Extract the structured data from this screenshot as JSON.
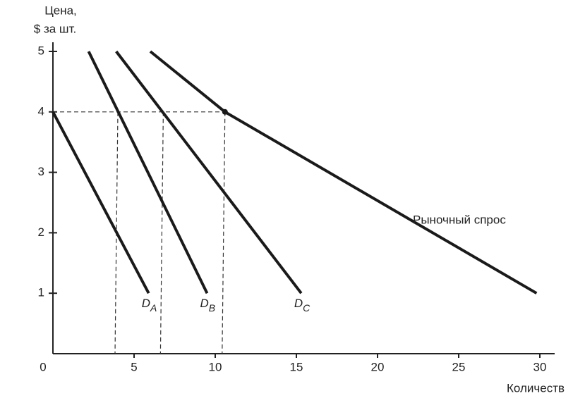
{
  "chart_data": {
    "type": "line",
    "ylabel": [
      "Цена,",
      "$ за шт."
    ],
    "xlabel": "Количеств",
    "xlim": [
      0,
      31
    ],
    "ylim": [
      0,
      5.3
    ],
    "xticks": [
      0,
      5,
      10,
      15,
      20,
      25,
      30
    ],
    "yticks": [
      1,
      2,
      3,
      4,
      5
    ],
    "series": [
      {
        "name": "D",
        "subscript": "A",
        "color": "#1a1a1a",
        "x": [
          0,
          5.9
        ],
        "values": [
          4,
          1
        ]
      },
      {
        "name": "D",
        "subscript": "B",
        "color": "#1a1a1a",
        "x": [
          2.2,
          9.5
        ],
        "values": [
          5,
          1
        ]
      },
      {
        "name": "D",
        "subscript": "C",
        "color": "#1a1a1a",
        "x": [
          3.9,
          15.3
        ],
        "values": [
          5,
          1
        ]
      },
      {
        "name": "Рыночный спрос",
        "color": "#1a1a1a",
        "x": [
          6,
          10.6,
          29.8
        ],
        "values": [
          5,
          4,
          1
        ]
      }
    ],
    "guides": {
      "y": 4,
      "x": [
        4.0,
        6.8,
        10.6
      ]
    }
  }
}
